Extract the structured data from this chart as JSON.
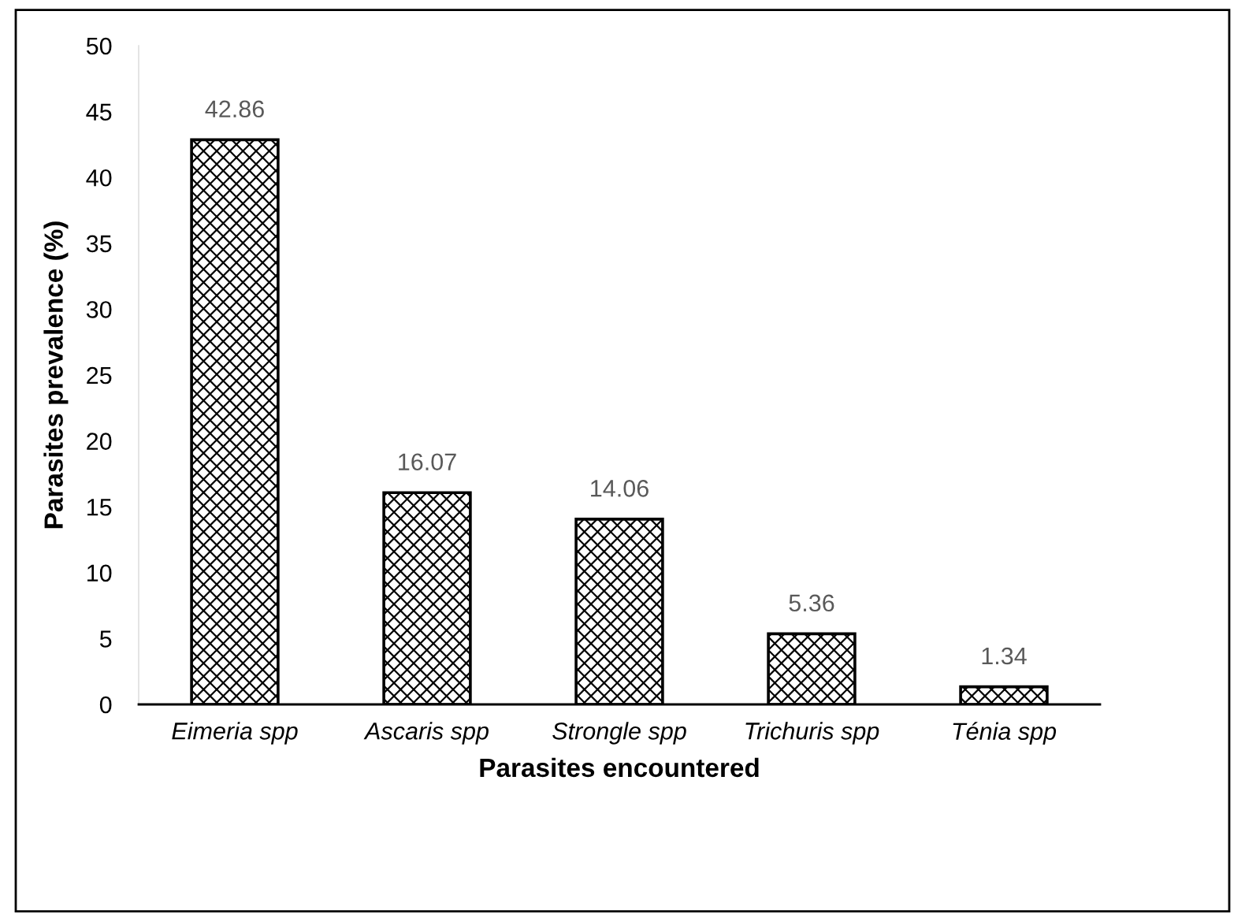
{
  "chart_data": {
    "type": "bar",
    "xlabel": "Parasites encountered",
    "ylabel": "Parasites prevalence (%)",
    "categories": [
      "Eimeria spp",
      "Ascaris spp",
      "Strongle spp",
      "Trichuris spp",
      "Ténia spp"
    ],
    "values": [
      42.86,
      16.07,
      14.06,
      5.36,
      1.34
    ],
    "color": "#000000",
    "ylim": [
      0,
      50
    ],
    "yticks": [
      0,
      5,
      10,
      15,
      20,
      25,
      30,
      35,
      40,
      45,
      50
    ],
    "grid": false,
    "data_labels": true,
    "legend": false
  }
}
